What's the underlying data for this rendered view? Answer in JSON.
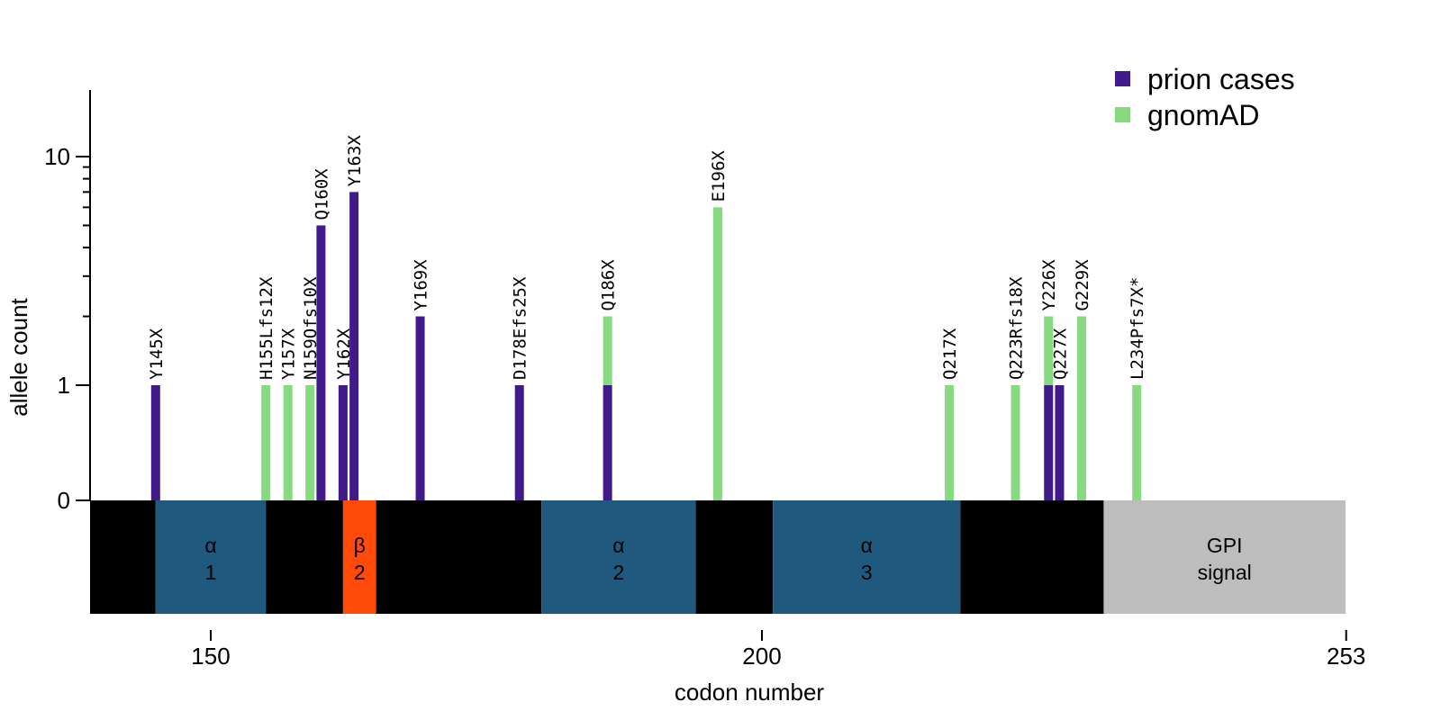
{
  "chart_data": {
    "type": "bar",
    "xlabel": "codon number",
    "ylabel": "allele count",
    "x_ticks": [
      150,
      200,
      253
    ],
    "y_ticks": [
      {
        "value": 0,
        "label": "0"
      },
      {
        "value": 1,
        "label": "1"
      },
      {
        "value": 10,
        "label": "10"
      }
    ],
    "legend": [
      {
        "name": "prion cases",
        "color": "#3F1A88"
      },
      {
        "name": "gnomAD",
        "color": "#88DA80"
      }
    ],
    "variants": [
      {
        "label": "Y145X",
        "codon": 145,
        "prion": 1,
        "gnomad": 0
      },
      {
        "label": "H155Lfs12X",
        "codon": 155,
        "prion": 0,
        "gnomad": 1
      },
      {
        "label": "Y157X",
        "codon": 157,
        "prion": 0,
        "gnomad": 1
      },
      {
        "label": "N159Ofs10X",
        "codon": 159,
        "prion": 0,
        "gnomad": 1
      },
      {
        "label": "Q160X",
        "codon": 160,
        "prion": 5,
        "gnomad": 0
      },
      {
        "label": "Y162X",
        "codon": 162,
        "prion": 1,
        "gnomad": 0
      },
      {
        "label": "Y163X",
        "codon": 163,
        "prion": 7,
        "gnomad": 0
      },
      {
        "label": "Y169X",
        "codon": 169,
        "prion": 2,
        "gnomad": 0
      },
      {
        "label": "D178Efs25X",
        "codon": 178,
        "prion": 1,
        "gnomad": 0
      },
      {
        "label": "Q186X",
        "codon": 186,
        "prion": 1,
        "gnomad": 1
      },
      {
        "label": "E196X",
        "codon": 196,
        "prion": 0,
        "gnomad": 6
      },
      {
        "label": "Q217X",
        "codon": 217,
        "prion": 0,
        "gnomad": 1
      },
      {
        "label": "Q223Rfs18X",
        "codon": 223,
        "prion": 0,
        "gnomad": 1
      },
      {
        "label": "Y226X",
        "codon": 226,
        "prion": 1,
        "gnomad": 1
      },
      {
        "label": "Q227X",
        "codon": 227,
        "prion": 1,
        "gnomad": 0
      },
      {
        "label": "G229X",
        "codon": 229,
        "prion": 0,
        "gnomad": 2
      },
      {
        "label": "L234Pfs7X*",
        "codon": 234,
        "prion": 0,
        "gnomad": 1
      }
    ],
    "domains": [
      {
        "start": 139,
        "end": 145,
        "color": "#000000",
        "line1": "",
        "line2": ""
      },
      {
        "start": 145,
        "end": 155,
        "color": "#1F5A7E",
        "line1": "α",
        "line2": "1"
      },
      {
        "start": 155,
        "end": 162,
        "color": "#000000",
        "line1": "",
        "line2": ""
      },
      {
        "start": 162,
        "end": 165,
        "color": "#FF4A0A",
        "line1": "β",
        "line2": "2"
      },
      {
        "start": 165,
        "end": 180,
        "color": "#000000",
        "line1": "",
        "line2": ""
      },
      {
        "start": 180,
        "end": 194,
        "color": "#1F5A7E",
        "line1": "α",
        "line2": "2"
      },
      {
        "start": 194,
        "end": 201,
        "color": "#000000",
        "line1": "",
        "line2": ""
      },
      {
        "start": 201,
        "end": 218,
        "color": "#1F5A7E",
        "line1": "α",
        "line2": "3"
      },
      {
        "start": 218,
        "end": 231,
        "color": "#000000",
        "line1": "",
        "line2": ""
      },
      {
        "start": 231,
        "end": 253,
        "color": "#BDBDBD",
        "line1": "GPI",
        "line2": "signal"
      }
    ]
  }
}
